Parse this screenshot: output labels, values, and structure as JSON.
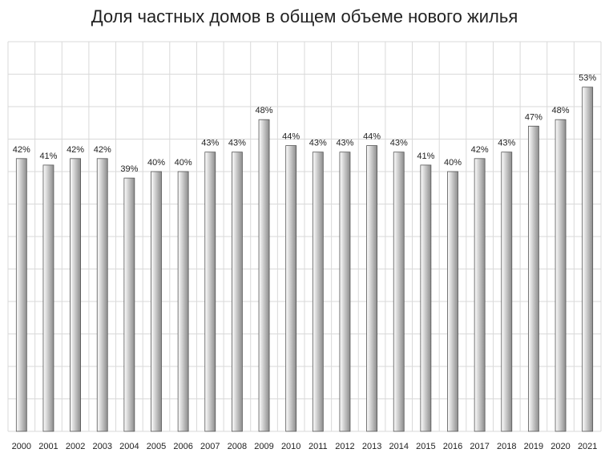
{
  "chart_data": {
    "type": "bar",
    "title": "Доля частных домов в общем объеме нового жилья",
    "xlabel": "",
    "ylabel": "",
    "ylim": [
      0,
      60
    ],
    "grid": true,
    "legend": "none",
    "bar_color_light": "#ffffff",
    "bar_color_dark": "#8c8c8c",
    "bar_edge_color": "#555555",
    "grid_color": "#d9d9d9",
    "categories": [
      "2000",
      "2001",
      "2002",
      "2003",
      "2004",
      "2005",
      "2006",
      "2007",
      "2008",
      "2009",
      "2010",
      "2011",
      "2012",
      "2013",
      "2014",
      "2015",
      "2016",
      "2017",
      "2018",
      "2019",
      "2020",
      "2021"
    ],
    "values": [
      42,
      41,
      42,
      42,
      39,
      40,
      40,
      43,
      43,
      48,
      44,
      43,
      43,
      44,
      43,
      41,
      40,
      42,
      43,
      47,
      48,
      53
    ],
    "data_labels": [
      "42%",
      "41%",
      "42%",
      "42%",
      "39%",
      "40%",
      "40%",
      "43%",
      "43%",
      "48%",
      "44%",
      "43%",
      "43%",
      "44%",
      "43%",
      "41%",
      "40%",
      "42%",
      "43%",
      "47%",
      "48%",
      "53%"
    ]
  }
}
